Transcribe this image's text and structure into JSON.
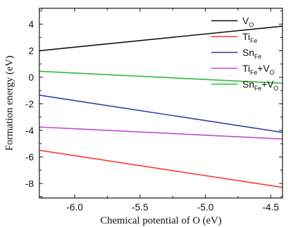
{
  "chart_data": {
    "type": "line",
    "title": "",
    "xlabel": "Chemical potential of O (eV)",
    "ylabel": "Formation energy (eV)",
    "xlim": [
      -6.27,
      -4.41
    ],
    "ylim": [
      -9.1,
      5.2
    ],
    "x_ticks": [
      "-6.0",
      "-5.5",
      "-5.0",
      "-4.5"
    ],
    "y_ticks": [
      "4",
      "2",
      "0",
      "-2",
      "-4",
      "-6",
      "-8"
    ],
    "x_tick_values": [
      -6.0,
      -5.5,
      -5.0,
      -4.5
    ],
    "y_tick_values": [
      4,
      2,
      0,
      -2,
      -4,
      -6,
      -8
    ],
    "legend_position": "top-right",
    "series": [
      {
        "name": "VO",
        "legend_main": "V",
        "legend_sub": "O",
        "legend_suffix": "",
        "legend_sub2": "",
        "color": "#111111",
        "x": [
          -6.27,
          -4.41
        ],
        "y": [
          2.0,
          3.85
        ]
      },
      {
        "name": "TiFe",
        "legend_main": "Ti",
        "legend_sub": "Fe",
        "legend_suffix": "",
        "legend_sub2": "",
        "color": "#ff3333",
        "x": [
          -6.27,
          -4.41
        ],
        "y": [
          -5.5,
          -8.3
        ]
      },
      {
        "name": "SnFe",
        "legend_main": "Sn",
        "legend_sub": "Fe",
        "legend_suffix": "",
        "legend_sub2": "",
        "color": "#2d3da8",
        "x": [
          -6.27,
          -4.41
        ],
        "y": [
          -1.35,
          -4.15
        ]
      },
      {
        "name": "TiFe+VO",
        "legend_main": "Ti",
        "legend_sub": "Fe",
        "legend_suffix": "+V",
        "legend_sub2": "O",
        "color": "#c04ad0",
        "x": [
          -6.27,
          -4.41
        ],
        "y": [
          -3.75,
          -4.65
        ]
      },
      {
        "name": "SnFe+VO",
        "legend_main": "Sn",
        "legend_sub": "Fe",
        "legend_suffix": "+V",
        "legend_sub2": "O",
        "color": "#2db83d",
        "x": [
          -6.27,
          -4.41
        ],
        "y": [
          0.45,
          -0.45
        ]
      }
    ]
  }
}
